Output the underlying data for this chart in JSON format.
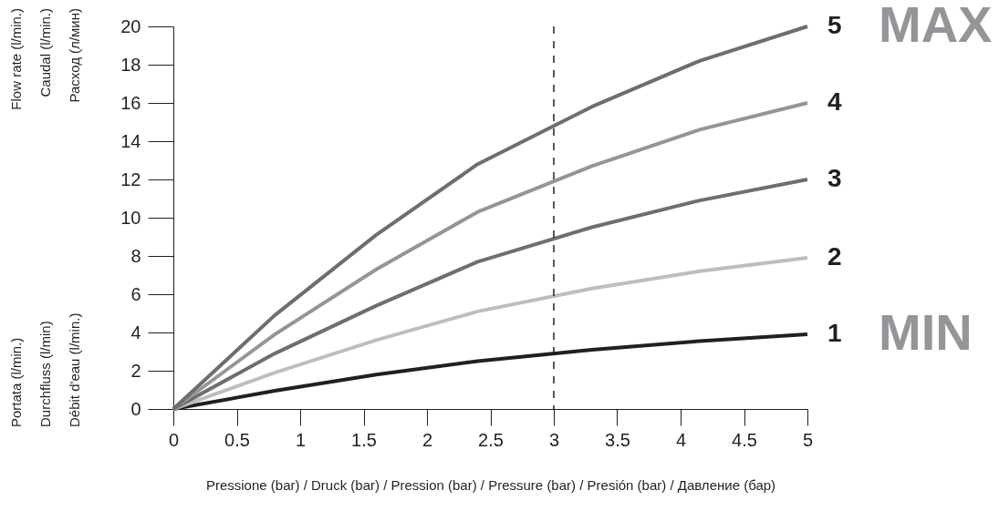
{
  "chart_data": {
    "type": "line",
    "xlabel": "Pressione (bar) / Druck (bar) / Pression (bar) / Pressure (bar) / Presión (bar) / Давление (бар)",
    "ylabel": "Portata (l/min.)\nDurchfluss (l/min)\nDébit d'eau (l/min.)\nFlow rate (l/min.)\nCaudal (l/min.)\nРасход (л/мин)",
    "x": [
      0,
      0.8,
      1.6,
      2.4,
      3.3,
      4.15,
      5
    ],
    "series": [
      {
        "name": "1",
        "color": "#231f20",
        "values": [
          0,
          0.95,
          1.8,
          2.5,
          3.1,
          3.55,
          3.9
        ]
      },
      {
        "name": "2",
        "color": "#bcbec0",
        "values": [
          0,
          1.9,
          3.6,
          5.1,
          6.3,
          7.2,
          7.9
        ]
      },
      {
        "name": "3",
        "color": "#6d6e70",
        "values": [
          0,
          2.9,
          5.4,
          7.7,
          9.5,
          10.9,
          12
        ]
      },
      {
        "name": "4",
        "color": "#939598",
        "values": [
          0,
          3.9,
          7.3,
          10.3,
          12.7,
          14.6,
          16
        ]
      },
      {
        "name": "5",
        "color": "#6d6e70",
        "values": [
          0,
          4.9,
          9.1,
          12.8,
          15.8,
          18.2,
          20
        ]
      }
    ],
    "xlim": [
      0,
      5
    ],
    "xticks": [
      0,
      0.5,
      1,
      1.5,
      2,
      2.5,
      3,
      3.5,
      4,
      4.5,
      5
    ],
    "ylim": [
      0,
      20
    ],
    "yticks": [
      0,
      2,
      4,
      6,
      8,
      10,
      12,
      14,
      16,
      18,
      20
    ],
    "ref_lines": [
      {
        "axis": "x",
        "value": 3,
        "line_style": "dashed",
        "color": "#231f20"
      }
    ],
    "annotations": [
      {
        "text": "MAX",
        "x": 5,
        "y": 20
      },
      {
        "text": "MIN",
        "x": 5,
        "y": 3.9
      }
    ],
    "grid": false,
    "legend": false,
    "marker": "none",
    "line_style": "solid"
  }
}
